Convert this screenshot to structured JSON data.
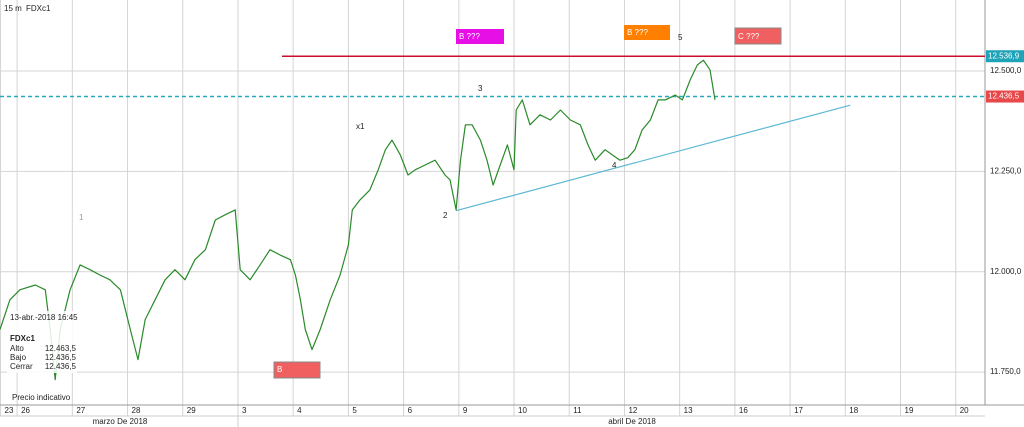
{
  "chart_data": {
    "type": "line",
    "interval": "15 m",
    "symbol": "FDXc1",
    "x": [
      0.69,
      0.87,
      1.05,
      1.33,
      1.51,
      1.6,
      1.69,
      1.78,
      1.96,
      2.14,
      2.32,
      2.5,
      2.68,
      2.87,
      3.05,
      3.19,
      3.32,
      3.5,
      3.68,
      3.86,
      4.04,
      4.22,
      4.41,
      4.59,
      4.77,
      4.95,
      5.04,
      5.22,
      5.4,
      5.58,
      5.76,
      5.95,
      6.04,
      6.13,
      6.22,
      6.34,
      6.49,
      6.67,
      6.85,
      7.0,
      7.07,
      7.21,
      7.39,
      7.54,
      7.67,
      7.79,
      7.94,
      8.08,
      8.21,
      8.39,
      8.57,
      8.75,
      8.84,
      8.95,
      9.03,
      9.12,
      9.24,
      9.39,
      9.51,
      9.62,
      9.75,
      9.88,
      10.0,
      10.04,
      10.15,
      10.29,
      10.47,
      10.66,
      10.84,
      11.02,
      11.2,
      11.34,
      11.47,
      11.65,
      11.78,
      11.92,
      12.06,
      12.19,
      12.32,
      12.47,
      12.61,
      12.74,
      12.92,
      13.05,
      13.19,
      13.32,
      13.43,
      13.55,
      13.64
    ],
    "series": [
      {
        "color": "#2a8a2a",
        "values": [
          11856,
          11930,
          11955,
          11967,
          11955,
          11856,
          11731,
          11856,
          11955,
          12017,
          12005,
          11992,
          11980,
          11955,
          11856,
          11781,
          11881,
          11930,
          11980,
          12005,
          11980,
          12030,
          12055,
          12129,
          12142,
          12154,
          12005,
          11980,
          12017,
          12055,
          12042,
          12030,
          11992,
          11930,
          11856,
          11806,
          11856,
          11930,
          11992,
          12067,
          12154,
          12179,
          12204,
          12254,
          12304,
          12328,
          12291,
          12241,
          12254,
          12266,
          12278,
          12241,
          12229,
          12154,
          12278,
          12366,
          12366,
          12328,
          12278,
          12216,
          12266,
          12316,
          12254,
          12403,
          12428,
          12366,
          12391,
          12378,
          12403,
          12378,
          12366,
          12316,
          12278,
          12304,
          12291,
          12278,
          12284,
          12304,
          12353,
          12378,
          12428,
          12428,
          12440,
          12428,
          12478,
          12515,
          12527,
          12503,
          12428
        ]
      }
    ],
    "xlim": [
      0.69,
      18.53
    ],
    "ylim": [
      11668,
      12677
    ],
    "yticks": [
      {
        "value": 11750,
        "label": "11.750,0"
      },
      {
        "value": 12000,
        "label": "12.000,0"
      },
      {
        "value": 12250,
        "label": "12.250,0"
      },
      {
        "value": 12500,
        "label": "12.500,0"
      }
    ],
    "xticks": [
      {
        "value": 0.7,
        "label": "23"
      },
      {
        "value": 1,
        "label": "26"
      },
      {
        "value": 2,
        "label": "27"
      },
      {
        "value": 3,
        "label": "28"
      },
      {
        "value": 4,
        "label": "29"
      },
      {
        "value": 5,
        "label": "3"
      },
      {
        "value": 6,
        "label": "4"
      },
      {
        "value": 7,
        "label": "5"
      },
      {
        "value": 8,
        "label": "6"
      },
      {
        "value": 9,
        "label": "9"
      },
      {
        "value": 10,
        "label": "10"
      },
      {
        "value": 11,
        "label": "11"
      },
      {
        "value": 12,
        "label": "12"
      },
      {
        "value": 13,
        "label": "13"
      },
      {
        "value": 14,
        "label": "16"
      },
      {
        "value": 15,
        "label": "17"
      },
      {
        "value": 16,
        "label": "18"
      },
      {
        "value": 17,
        "label": "19"
      },
      {
        "value": 18,
        "label": "20"
      }
    ],
    "months": [
      "marzo De 2018",
      "abril De 2018"
    ],
    "grid": true,
    "levels": [
      {
        "value": 12536.9,
        "label": "12.536,9",
        "color": "#c8102e",
        "label_color": "#1fa3b8",
        "style": "solid"
      },
      {
        "value": 12436.5,
        "label": "12.436,5",
        "color": "#2aa8c0",
        "label_color": "#e8484a",
        "style": "dashed"
      }
    ],
    "trendline": {
      "x": [
        8.95,
        16.09
      ],
      "values": [
        12152,
        12415
      ],
      "color": "#5bb8d4"
    },
    "annotations": [
      "B ???",
      "B ???",
      "C ???",
      "B",
      "1",
      "2",
      "3",
      "4",
      "5",
      "x1"
    ],
    "info": {
      "datetime": "13-abr.-2018 16:45",
      "symbol": "FDXc1",
      "rows": [
        [
          "Alto",
          "12.463,5"
        ],
        [
          "Bajo",
          "12.436,5"
        ],
        [
          "Cerrar",
          "12.436,5"
        ]
      ],
      "note": "Precio indicativo"
    }
  }
}
